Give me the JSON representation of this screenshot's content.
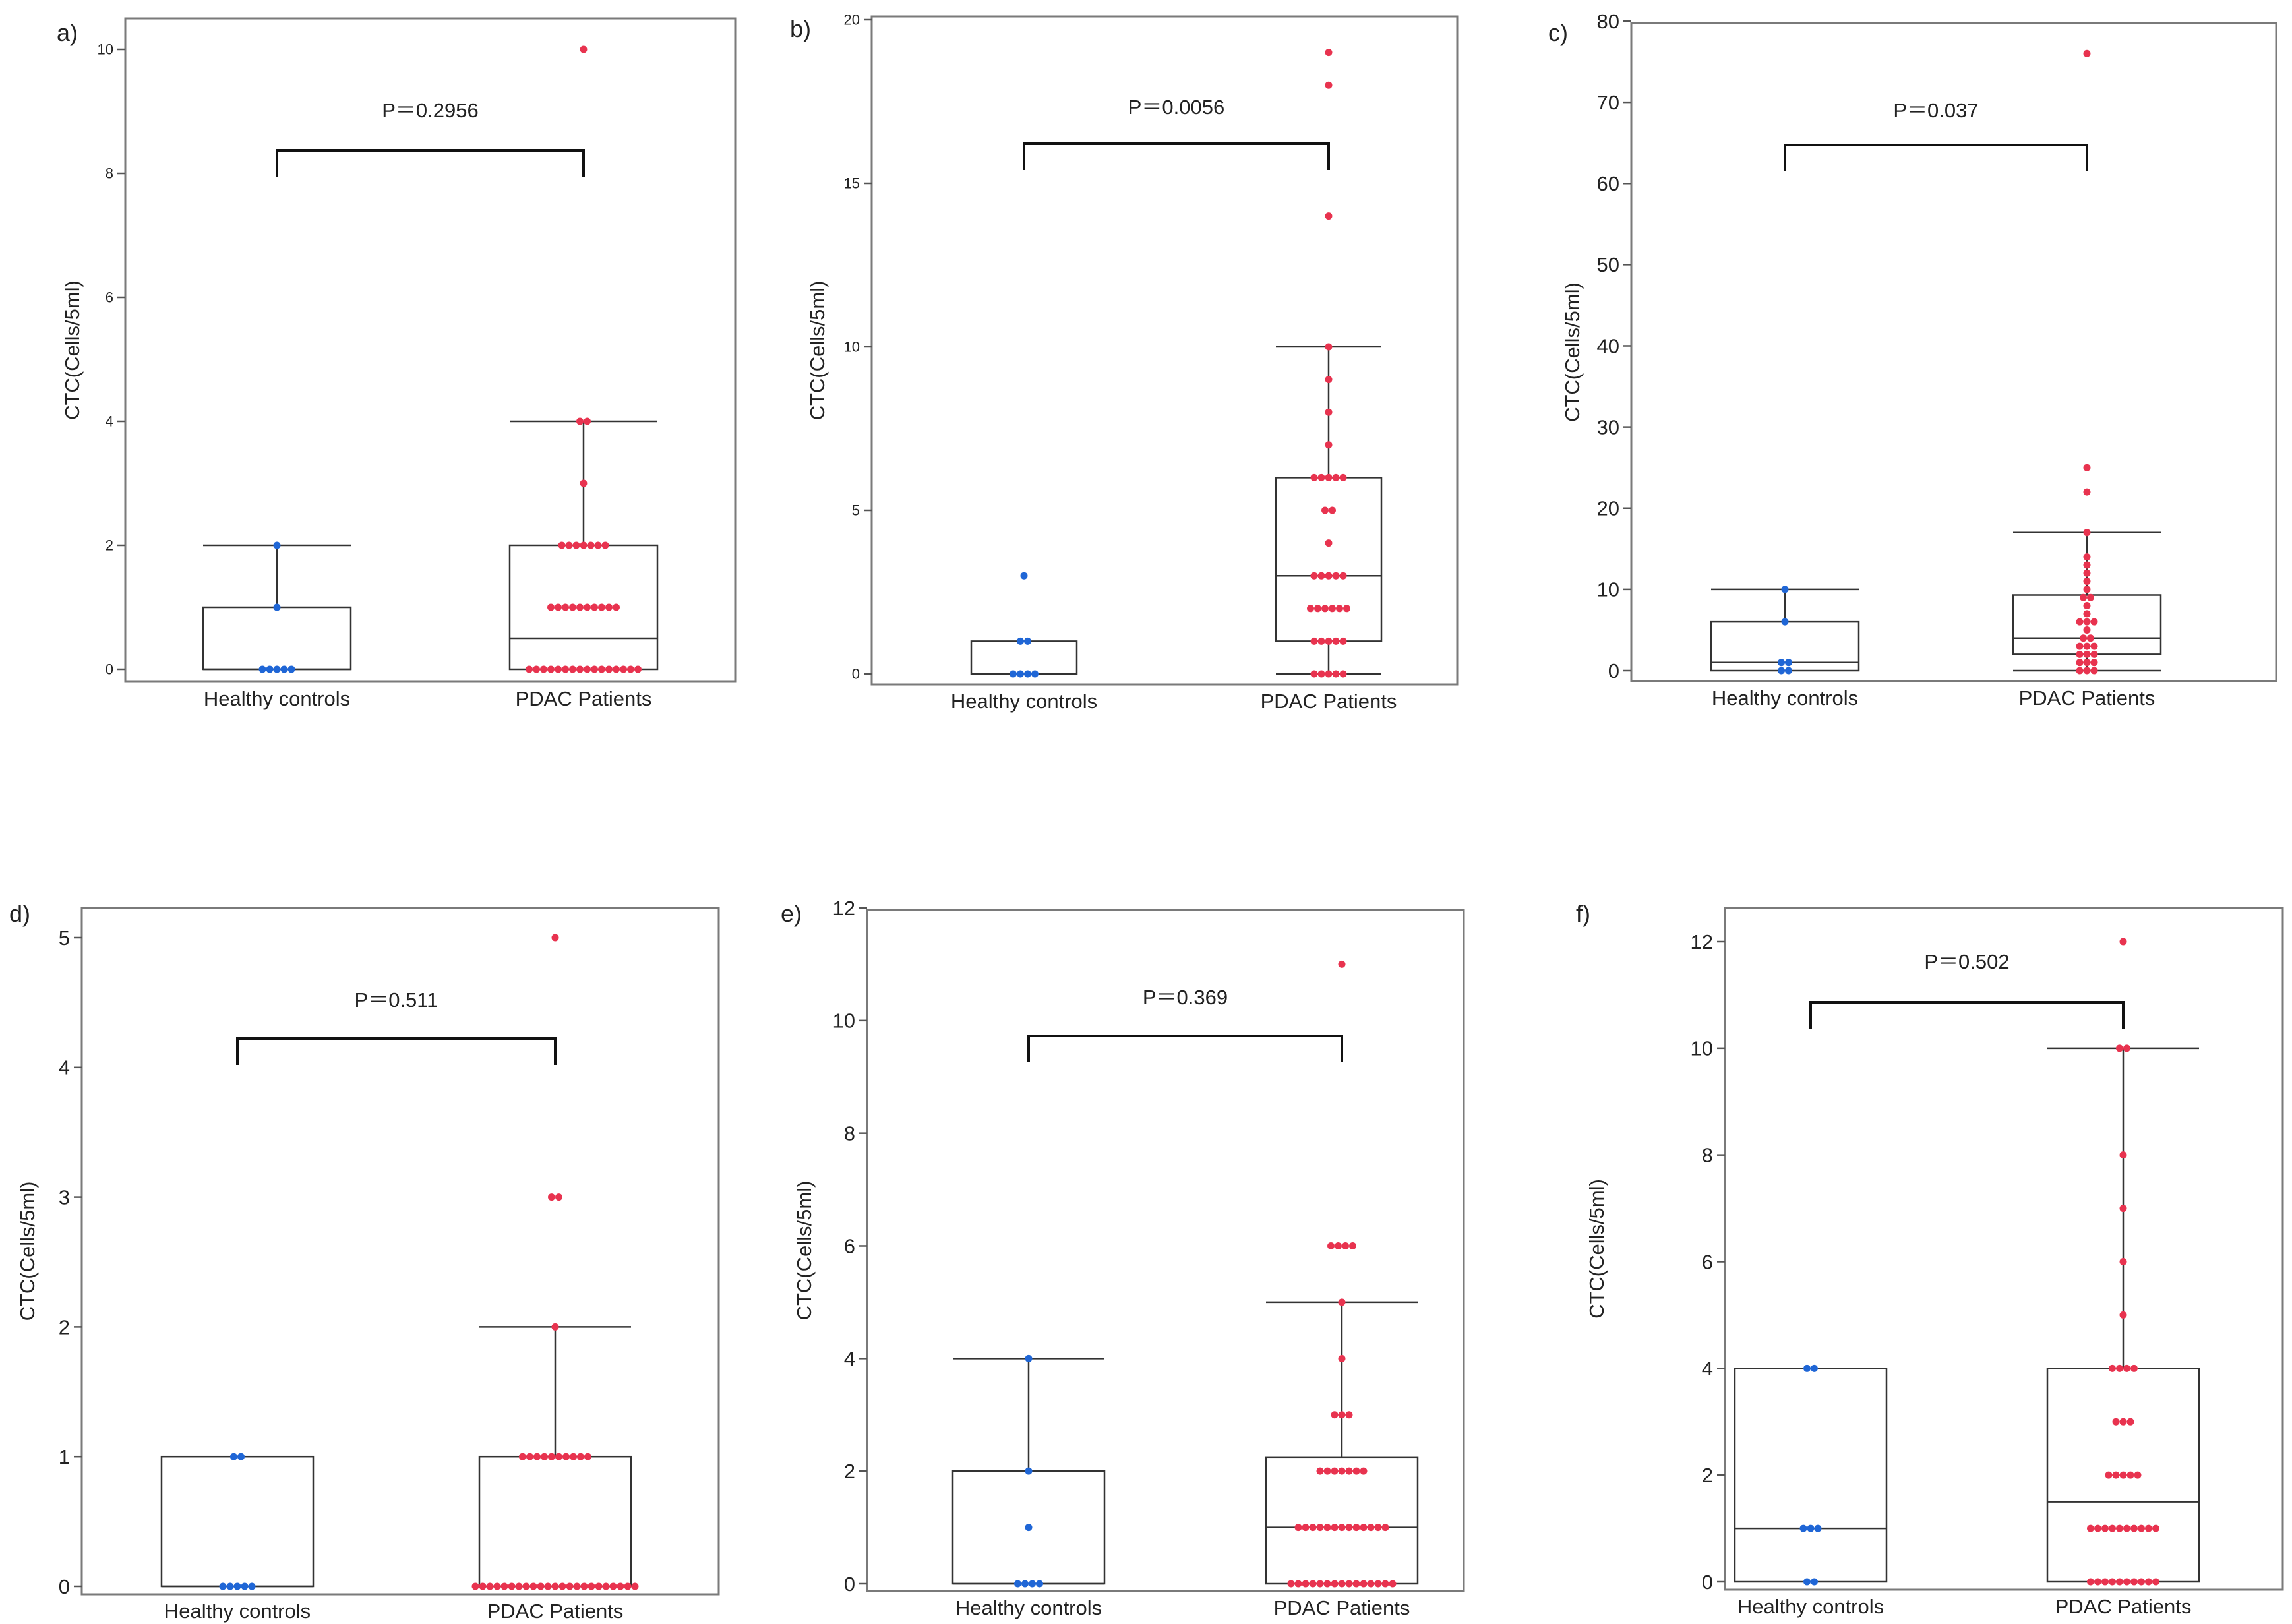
{
  "colors": {
    "control": "#1f66d6",
    "patient": "#e8334f"
  },
  "chart_data": [
    {
      "id": "a",
      "type": "box-swarm",
      "panel_letter": "a)",
      "ylabel": "CTC(Cells/5ml)",
      "ylim": [
        0,
        10.5
      ],
      "yticks": [
        0,
        2,
        4,
        6,
        8,
        10
      ],
      "categories": [
        "Healthy controls",
        "PDAC Patients"
      ],
      "p_value": "P＝0.2956",
      "groups": [
        {
          "name": "Healthy controls",
          "box": {
            "q1": 0,
            "median": 0,
            "q3": 1,
            "whisker_low": 0,
            "whisker_high": 2
          },
          "points": [
            0,
            0,
            0,
            0,
            0,
            1,
            2
          ]
        },
        {
          "name": "PDAC Patients",
          "box": {
            "q1": 0,
            "median": 0.5,
            "q3": 2,
            "whisker_low": 0,
            "whisker_high": 4
          },
          "points": [
            0,
            0,
            0,
            0,
            0,
            0,
            0,
            0,
            0,
            0,
            0,
            0,
            0,
            0,
            0,
            0,
            1,
            1,
            1,
            1,
            1,
            1,
            1,
            1,
            1,
            1,
            2,
            2,
            2,
            2,
            2,
            2,
            2,
            3,
            4,
            4,
            10
          ]
        }
      ]
    },
    {
      "id": "b",
      "type": "box-swarm",
      "panel_letter": "b)",
      "ylabel": "CTC(Cells/5ml)",
      "ylim": [
        0,
        20
      ],
      "yticks": [
        0,
        5,
        10,
        15,
        20
      ],
      "categories": [
        "Healthy controls",
        "PDAC Patients"
      ],
      "p_value": "P＝0.0056",
      "groups": [
        {
          "name": "Healthy controls",
          "box": {
            "q1": 0,
            "median": 0,
            "q3": 1,
            "whisker_low": 0,
            "whisker_high": 1
          },
          "points": [
            0,
            0,
            0,
            0,
            1,
            1,
            3
          ]
        },
        {
          "name": "PDAC Patients",
          "box": {
            "q1": 1,
            "median": 3,
            "q3": 6,
            "whisker_low": 0,
            "whisker_high": 10
          },
          "points": [
            0,
            0,
            0,
            0,
            0,
            1,
            1,
            1,
            1,
            1,
            2,
            2,
            2,
            2,
            2,
            2,
            3,
            3,
            3,
            3,
            3,
            4,
            5,
            5,
            6,
            6,
            6,
            6,
            6,
            7,
            8,
            9,
            10,
            14,
            18,
            19
          ]
        }
      ]
    },
    {
      "id": "c",
      "type": "box-swarm",
      "panel_letter": "c)",
      "ylabel": "CTC(Cells/5ml)",
      "ylim": [
        0,
        80
      ],
      "yticks": [
        0,
        10,
        20,
        30,
        40,
        50,
        60,
        70,
        80
      ],
      "categories": [
        "Healthy controls",
        "PDAC Patients"
      ],
      "p_value": "P＝0.037",
      "groups": [
        {
          "name": "Healthy controls",
          "box": {
            "q1": 0,
            "median": 1,
            "q3": 6,
            "whisker_low": 0,
            "whisker_high": 10
          },
          "points": [
            0,
            0,
            1,
            1,
            6,
            10
          ]
        },
        {
          "name": "PDAC Patients",
          "box": {
            "q1": 2,
            "median": 4,
            "q3": 9.3,
            "whisker_low": 0,
            "whisker_high": 17
          },
          "points": [
            0,
            0,
            0,
            1,
            1,
            1,
            2,
            2,
            2,
            3,
            3,
            3,
            4,
            4,
            5,
            6,
            6,
            6,
            7,
            8,
            9,
            9,
            10,
            11,
            12,
            13,
            14,
            17,
            22,
            25,
            76
          ]
        }
      ]
    },
    {
      "id": "d",
      "type": "box-swarm",
      "panel_letter": "d)",
      "ylabel": "CTC(Cells/5ml)",
      "ylim": [
        0,
        5.2
      ],
      "yticks": [
        0,
        1,
        2,
        3,
        4,
        5
      ],
      "categories": [
        "Healthy controls",
        "PDAC Patients"
      ],
      "p_value": "P＝0.511",
      "groups": [
        {
          "name": "Healthy controls",
          "box": {
            "q1": 0,
            "median": 0,
            "q3": 1,
            "whisker_low": 0,
            "whisker_high": 1
          },
          "points": [
            0,
            0,
            0,
            0,
            0,
            1,
            1
          ]
        },
        {
          "name": "PDAC Patients",
          "box": {
            "q1": 0,
            "median": 0,
            "q3": 1,
            "whisker_low": 0,
            "whisker_high": 2
          },
          "points": [
            0,
            0,
            0,
            0,
            0,
            0,
            0,
            0,
            0,
            0,
            0,
            0,
            0,
            0,
            0,
            0,
            0,
            0,
            0,
            0,
            0,
            0,
            0,
            1,
            1,
            1,
            1,
            1,
            1,
            1,
            1,
            1,
            1,
            2,
            3,
            3,
            5
          ]
        }
      ]
    },
    {
      "id": "e",
      "type": "box-swarm",
      "panel_letter": "e)",
      "ylabel": "CTC(Cells/5ml)",
      "ylim": [
        0,
        12
      ],
      "yticks": [
        0,
        2,
        4,
        6,
        8,
        10,
        12
      ],
      "categories": [
        "Healthy controls",
        "PDAC Patients"
      ],
      "p_value": "P＝0.369",
      "groups": [
        {
          "name": "Healthy controls",
          "box": {
            "q1": 0,
            "median": 0,
            "q3": 2,
            "whisker_low": 0,
            "whisker_high": 4
          },
          "points": [
            0,
            0,
            0,
            0,
            1,
            2,
            4
          ]
        },
        {
          "name": "PDAC Patients",
          "box": {
            "q1": 0,
            "median": 1,
            "q3": 2.25,
            "whisker_low": 0,
            "whisker_high": 5
          },
          "points": [
            0,
            0,
            0,
            0,
            0,
            0,
            0,
            0,
            0,
            0,
            0,
            0,
            0,
            0,
            0,
            1,
            1,
            1,
            1,
            1,
            1,
            1,
            1,
            1,
            1,
            1,
            1,
            1,
            2,
            2,
            2,
            2,
            2,
            2,
            2,
            3,
            3,
            3,
            4,
            5,
            6,
            6,
            6,
            6,
            11
          ]
        }
      ]
    },
    {
      "id": "f",
      "type": "box-swarm",
      "panel_letter": "f)",
      "ylabel": "CTC(Cells/5ml)",
      "ylim": [
        0,
        12.5
      ],
      "yticks": [
        0,
        2,
        4,
        6,
        8,
        10,
        12
      ],
      "categories": [
        "Healthy controls",
        "PDAC Patients"
      ],
      "p_value": "P＝0.502",
      "groups": [
        {
          "name": "Healthy controls",
          "box": {
            "q1": 0,
            "median": 1,
            "q3": 4,
            "whisker_low": 0,
            "whisker_high": 4
          },
          "points": [
            0,
            0,
            1,
            1,
            1,
            4,
            4
          ]
        },
        {
          "name": "PDAC Patients",
          "box": {
            "q1": 0,
            "median": 1.5,
            "q3": 4,
            "whisker_low": 0,
            "whisker_high": 10
          },
          "points": [
            0,
            0,
            0,
            0,
            0,
            0,
            0,
            0,
            0,
            0,
            1,
            1,
            1,
            1,
            1,
            1,
            1,
            1,
            1,
            1,
            2,
            2,
            2,
            2,
            2,
            3,
            3,
            3,
            4,
            4,
            4,
            4,
            5,
            6,
            7,
            8,
            10,
            10,
            12
          ]
        }
      ]
    }
  ]
}
